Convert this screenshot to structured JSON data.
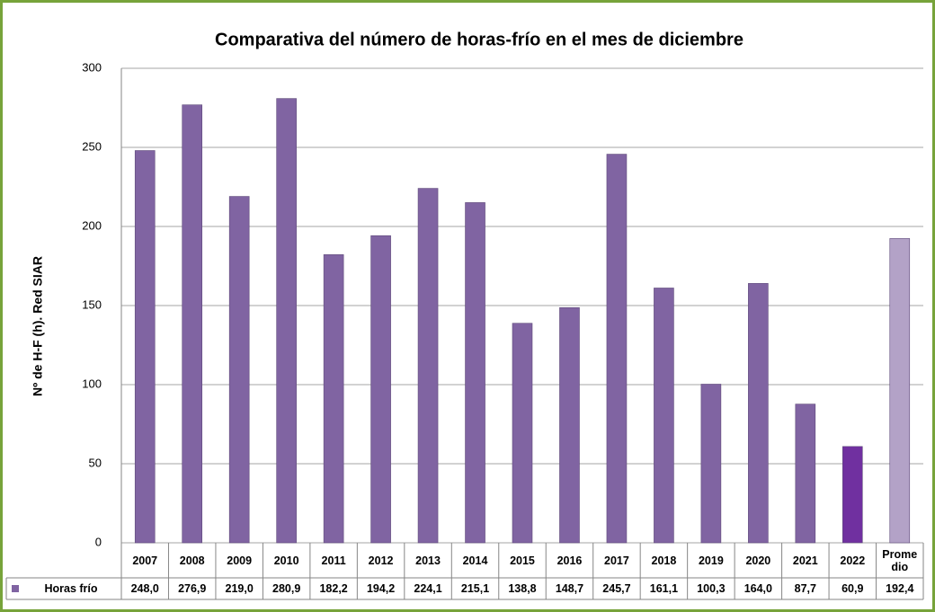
{
  "chart_data": {
    "type": "bar",
    "title": "Comparativa del número de horas-frío en el mes de diciembre",
    "y_label": "Nº de H-F (h). Red SIAR",
    "categories": [
      "2007",
      "2008",
      "2009",
      "2010",
      "2011",
      "2012",
      "2013",
      "2014",
      "2015",
      "2016",
      "2017",
      "2018",
      "2019",
      "2020",
      "2021",
      "2022",
      "Prome dio"
    ],
    "series": [
      {
        "name": "Horas frío",
        "color": "#8064a2",
        "colors": [
          "#8064a2",
          "#8064a2",
          "#8064a2",
          "#8064a2",
          "#8064a2",
          "#8064a2",
          "#8064a2",
          "#8064a2",
          "#8064a2",
          "#8064a2",
          "#8064a2",
          "#8064a2",
          "#8064a2",
          "#8064a2",
          "#8064a2",
          "#7030a0",
          "#b3a2c7"
        ],
        "values": [
          248.0,
          276.9,
          219.0,
          280.9,
          182.2,
          194.2,
          224.1,
          215.1,
          138.8,
          148.7,
          245.7,
          161.1,
          100.3,
          164.0,
          87.7,
          60.9,
          192.4
        ],
        "value_labels": [
          "248,0",
          "276,9",
          "219,0",
          "280,9",
          "182,2",
          "194,2",
          "224,1",
          "215,1",
          "138,8",
          "148,7",
          "245,7",
          "161,1",
          "100,3",
          "164,0",
          "87,7",
          "60,9",
          "192,4"
        ]
      }
    ],
    "ylim": [
      0,
      300
    ],
    "yticks": [
      0,
      50,
      100,
      150,
      200,
      250,
      300
    ],
    "grid": true
  }
}
